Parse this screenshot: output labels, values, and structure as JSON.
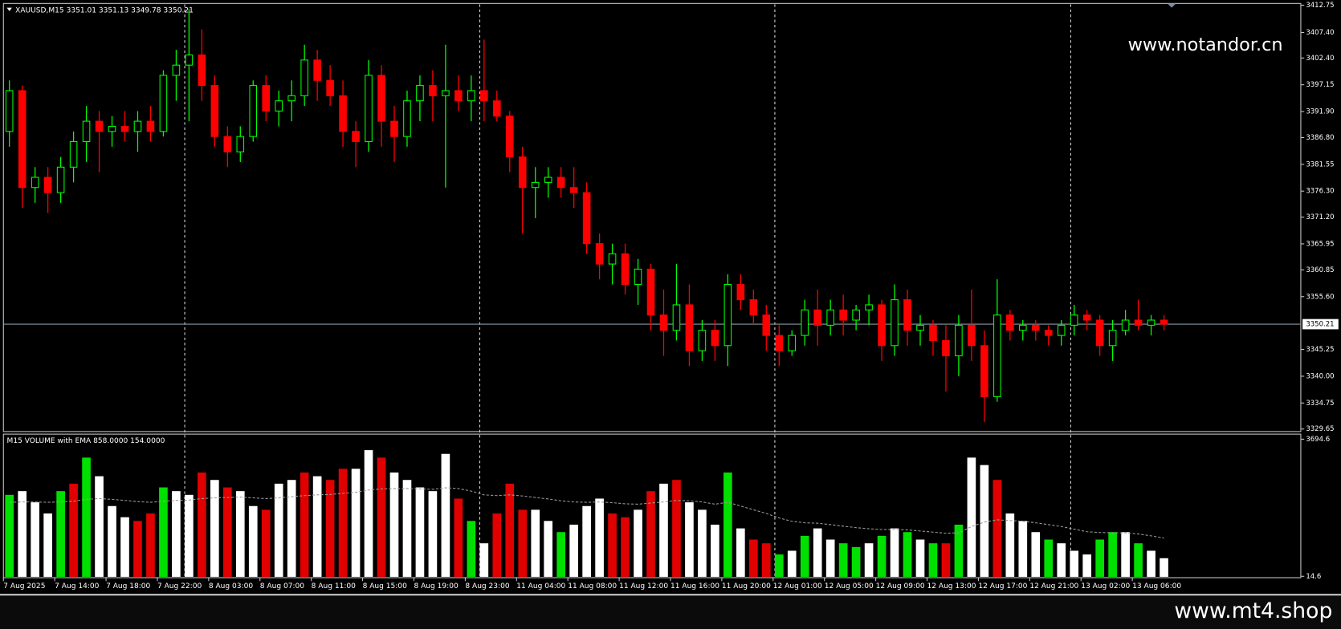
{
  "chart_data": [
    {
      "type": "candlestick",
      "title": "XAUUSD,M15  3351.01 3351.13 3349.78 3350.21",
      "watermark": "www.notandor.cn",
      "categories": [
        "7 Aug 2025",
        null,
        null,
        null,
        "7 Aug 14:00",
        null,
        null,
        null,
        "7 Aug 18:00",
        null,
        null,
        null,
        "7 Aug 22:00",
        null,
        null,
        null,
        "8 Aug 03:00",
        null,
        null,
        null,
        "8 Aug 07:00",
        null,
        null,
        null,
        "8 Aug 11:00",
        null,
        null,
        null,
        "8 Aug 15:00",
        null,
        null,
        null,
        "8 Aug 19:00",
        null,
        null,
        null,
        "8 Aug 23:00",
        null,
        null,
        null,
        "11 Aug 04:00",
        null,
        null,
        null,
        "11 Aug 08:00",
        null,
        null,
        null,
        "11 Aug 12:00",
        null,
        null,
        null,
        "11 Aug 16:00",
        null,
        null,
        null,
        "11 Aug 20:00",
        null,
        null,
        null,
        "12 Aug 01:00",
        null,
        null,
        null,
        "12 Aug 05:00",
        null,
        null,
        null,
        "12 Aug 09:00",
        null,
        null,
        null,
        "12 Aug 13:00",
        null,
        null,
        null,
        "12 Aug 17:00",
        null,
        null,
        null,
        "12 Aug 21:00",
        null,
        null,
        null,
        "13 Aug 02:00",
        null,
        null,
        null,
        "13 Aug 06:00",
        null,
        null
      ],
      "open": [
        3388,
        3396,
        3377,
        3379,
        3376,
        3381,
        3386,
        3390,
        3388,
        3389,
        3388,
        3390,
        3388,
        3399,
        3401,
        3403,
        3397,
        3387,
        3384,
        3387,
        3397,
        3392,
        3394,
        3395,
        3402,
        3398,
        3395,
        3388,
        3386,
        3399,
        3390,
        3387,
        3394,
        3397,
        3395,
        3396,
        3394,
        3396,
        3394,
        3391,
        3383,
        3377,
        3378,
        3379,
        3377,
        3376,
        3366,
        3362,
        3364,
        3358,
        3361,
        3352,
        3349,
        3354,
        3345,
        3349,
        3346,
        3358,
        3355,
        3352,
        3348,
        3345,
        3348,
        3353,
        3350,
        3353,
        3351,
        3353,
        3354,
        3346,
        3355,
        3349,
        3350,
        3347,
        3344,
        3350,
        3346,
        3336,
        3352,
        3349,
        3350,
        3349,
        3348,
        3350,
        3352,
        3351,
        3346,
        3349,
        3351,
        3350,
        3351
      ],
      "high": [
        3398,
        3397,
        3381,
        3381,
        3383,
        3388,
        3393,
        3392,
        3391,
        3392,
        3392,
        3393,
        3400,
        3404,
        3412,
        3408,
        3399,
        3389,
        3389,
        3398,
        3399,
        3396,
        3398,
        3405,
        3404,
        3401,
        3398,
        3390,
        3402,
        3401,
        3393,
        3396,
        3399,
        3400,
        3405,
        3399,
        3399,
        3406,
        3396,
        3392,
        3385,
        3381,
        3381,
        3381,
        3381,
        3378,
        3368,
        3366,
        3366,
        3363,
        3362,
        3357,
        3362,
        3358,
        3351,
        3351,
        3360,
        3360,
        3357,
        3354,
        3350,
        3349,
        3355,
        3357,
        3355,
        3356,
        3354,
        3356,
        3355,
        3358,
        3357,
        3352,
        3351,
        3350,
        3352,
        3357,
        3349,
        3359,
        3353,
        3351,
        3351,
        3350,
        3351,
        3354,
        3353,
        3352,
        3351,
        3353,
        3355,
        3352,
        3352
      ],
      "low": [
        3385,
        3373,
        3374,
        3372,
        3374,
        3378,
        3382,
        3380,
        3385,
        3386,
        3384,
        3386,
        3387,
        3394,
        3390,
        3394,
        3385,
        3381,
        3382,
        3386,
        3390,
        3389,
        3390,
        3393,
        3394,
        3393,
        3385,
        3381,
        3384,
        3385,
        3382,
        3385,
        3390,
        3390,
        3377,
        3392,
        3390,
        3390,
        3390,
        3380,
        3368,
        3371,
        3375,
        3375,
        3373,
        3364,
        3359,
        3358,
        3356,
        3354,
        3349,
        3344,
        3347,
        3342,
        3343,
        3343,
        3342,
        3353,
        3350,
        3345,
        3342,
        3344,
        3346,
        3346,
        3348,
        3348,
        3349,
        3350,
        3343,
        3344,
        3346,
        3346,
        3344,
        3337,
        3340,
        3343,
        3331,
        3335,
        3347,
        3347,
        3347,
        3346,
        3346,
        3348,
        3349,
        3344,
        3343,
        3348,
        3349,
        3348,
        3349
      ],
      "close": [
        3396,
        3377,
        3379,
        3376,
        3381,
        3386,
        3390,
        3388,
        3389,
        3388,
        3390,
        3388,
        3399,
        3401,
        3403,
        3397,
        3387,
        3384,
        3387,
        3397,
        3392,
        3394,
        3395,
        3402,
        3398,
        3395,
        3388,
        3386,
        3399,
        3390,
        3387,
        3394,
        3397,
        3395,
        3396,
        3394,
        3396,
        3394,
        3391,
        3383,
        3377,
        3378,
        3379,
        3377,
        3376,
        3366,
        3362,
        3364,
        3358,
        3361,
        3352,
        3349,
        3354,
        3345,
        3349,
        3346,
        3358,
        3355,
        3352,
        3348,
        3345,
        3348,
        3353,
        3350,
        3353,
        3351,
        3353,
        3354,
        3346,
        3355,
        3349,
        3350,
        3347,
        3344,
        3350,
        3346,
        3336,
        3352,
        3349,
        3350,
        3349,
        3348,
        3350,
        3352,
        3351,
        3346,
        3349,
        3351,
        3350,
        3351,
        3350.21
      ],
      "colors": {
        "up": "#00ff00",
        "down": "#ff0000"
      },
      "last_price": 3350.21,
      "ylim": [
        3329.15,
        3413.09
      ],
      "yticks": [
        3412.75,
        {
          "value": 3407.4,
          "label": "3407.40"
        },
        {
          "value": 3402.4,
          "label": "3402.40"
        },
        3397.15,
        {
          "value": 3391.9,
          "label": "3391.90"
        },
        {
          "value": 3386.8,
          "label": "3386.80"
        },
        3381.55,
        {
          "value": 3376.3,
          "label": "3376.30"
        },
        {
          "value": 3371.2,
          "label": "3371.20"
        },
        3365.95,
        3360.85,
        {
          "value": 3355.6,
          "label": "3355.60"
        },
        3345.25,
        {
          "value": 3340,
          "label": "3340.00"
        },
        3334.75,
        3329.65
      ]
    },
    {
      "type": "bar",
      "title": "M15 VOLUME with EMA 858.0000 154.0000",
      "watermark": "www.mt4.shop",
      "values": [
        2200,
        2300,
        2000,
        1700,
        2300,
        2500,
        3200,
        2700,
        1900,
        1600,
        1500,
        1700,
        2400,
        2300,
        2200,
        2800,
        2600,
        2400,
        2300,
        1900,
        1800,
        2500,
        2600,
        2800,
        2700,
        2600,
        2900,
        2900,
        3400,
        3200,
        2800,
        2600,
        2400,
        2300,
        3300,
        2100,
        1500,
        900,
        1700,
        2500,
        1800,
        1800,
        1500,
        1200,
        1400,
        1900,
        2100,
        1700,
        1600,
        1800,
        2300,
        2500,
        2600,
        2000,
        1800,
        1400,
        2800,
        1300,
        1000,
        900,
        600,
        700,
        1100,
        1300,
        1000,
        900,
        800,
        900,
        1100,
        1300,
        1200,
        1000,
        900,
        900,
        1400,
        3200,
        3000,
        2600,
        1700,
        1500,
        1200,
        1000,
        900,
        700,
        600,
        1000,
        1200,
        1200,
        900,
        700,
        500
      ],
      "colors": [
        "#00e000",
        "#ffffff",
        "#ffffff",
        "#ffffff",
        "#00e000",
        "#e00000",
        "#00e000",
        "#ffffff",
        "#ffffff",
        "#ffffff",
        "#e00000",
        "#e00000",
        "#00e000",
        "#ffffff",
        "#ffffff",
        "#e00000",
        "#ffffff",
        "#e00000",
        "#ffffff",
        "#ffffff",
        "#e00000",
        "#ffffff",
        "#ffffff",
        "#e00000",
        "#ffffff",
        "#e00000",
        "#e00000",
        "#ffffff",
        "#ffffff",
        "#e00000",
        "#ffffff",
        "#ffffff",
        "#ffffff",
        "#ffffff",
        "#ffffff",
        "#e00000",
        "#00e000",
        "#ffffff",
        "#e00000",
        "#e00000",
        "#e00000",
        "#ffffff",
        "#ffffff",
        "#00e000",
        "#ffffff",
        "#ffffff",
        "#ffffff",
        "#e00000",
        "#e00000",
        "#ffffff",
        "#e00000",
        "#ffffff",
        "#e00000",
        "#ffffff",
        "#ffffff",
        "#ffffff",
        "#00e000",
        "#ffffff",
        "#e00000",
        "#e00000",
        "#00e000",
        "#ffffff",
        "#00e000",
        "#ffffff",
        "#ffffff",
        "#00e000",
        "#00e000",
        "#ffffff",
        "#00e000",
        "#ffffff",
        "#00e000",
        "#ffffff",
        "#00e000",
        "#e00000",
        "#00e000",
        "#ffffff",
        "#ffffff",
        "#e00000",
        "#ffffff",
        "#ffffff",
        "#ffffff",
        "#00e000",
        "#ffffff",
        "#ffffff",
        "#ffffff",
        "#00e000",
        "#00e000",
        "#ffffff",
        "#00e000",
        "#ffffff",
        "#ffffff"
      ],
      "ema": {
        "color": "#9a9a9a",
        "values": [
          2000,
          2010,
          2010,
          2000,
          2010,
          2030,
          2080,
          2100,
          2080,
          2050,
          2020,
          2000,
          2030,
          2050,
          2060,
          2100,
          2120,
          2130,
          2140,
          2120,
          2100,
          2120,
          2150,
          2180,
          2200,
          2210,
          2240,
          2270,
          2330,
          2360,
          2370,
          2370,
          2360,
          2350,
          2390,
          2370,
          2300,
          2200,
          2180,
          2200,
          2170,
          2130,
          2090,
          2040,
          2010,
          2000,
          2010,
          1990,
          1960,
          1950,
          1980,
          2010,
          2050,
          2040,
          2010,
          1950,
          2000,
          1900,
          1800,
          1700,
          1580,
          1490,
          1450,
          1440,
          1400,
          1360,
          1320,
          1290,
          1270,
          1270,
          1260,
          1230,
          1200,
          1170,
          1180,
          1350,
          1470,
          1530,
          1510,
          1490,
          1450,
          1400,
          1350,
          1280,
          1210,
          1190,
          1180,
          1180,
          1150,
          1100,
          1040
        ]
      },
      "ylim": [
        0,
        3830
      ],
      "yticks": [
        3694.6,
        14.6
      ]
    }
  ]
}
